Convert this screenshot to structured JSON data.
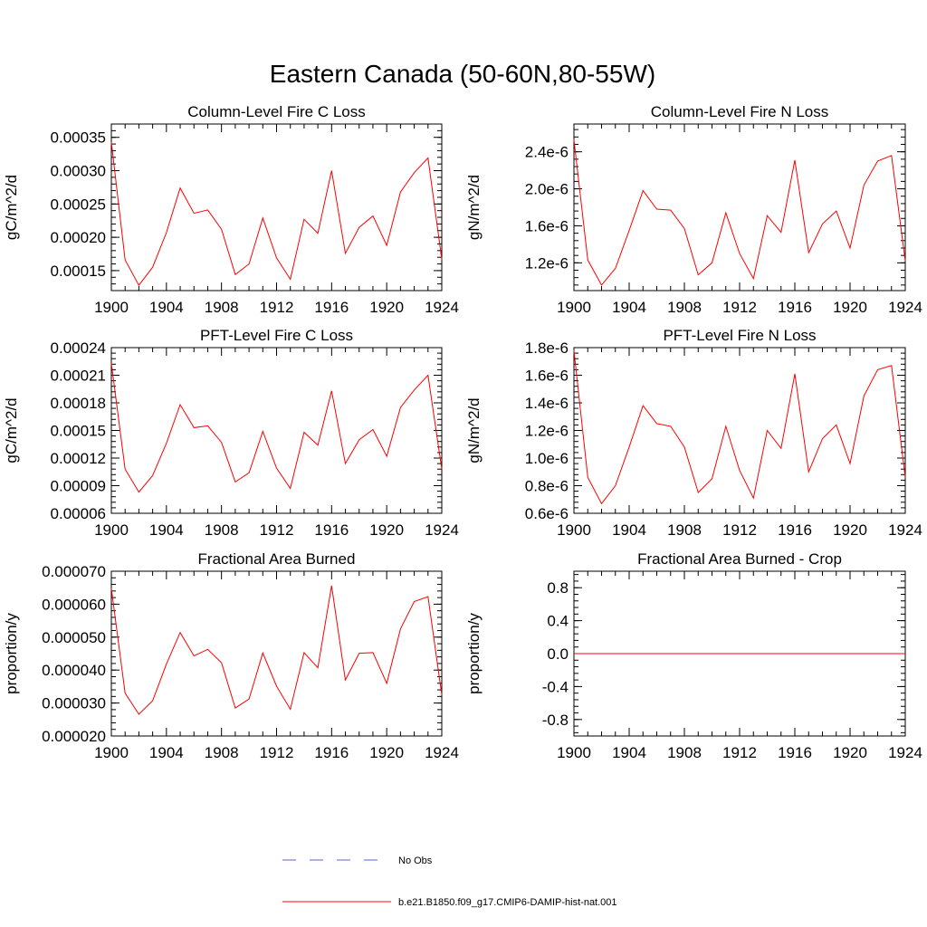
{
  "figure": {
    "title": "Eastern Canada (50-60N,80-55W)"
  },
  "legend": {
    "entries": [
      {
        "label": "No Obs",
        "color": "#5566cc",
        "dash": true
      },
      {
        "label": "b.e21.B1850.f09_g17.CMIP6-DAMIP-hist-nat.001",
        "color": "#ff0000",
        "dash": false
      }
    ]
  },
  "chart_data": [
    {
      "type": "line",
      "title": "Column-Level Fire C Loss",
      "ylabel": "gC/m^2/d",
      "xlabel": "",
      "xlim": [
        1900,
        1924
      ],
      "ylim": [
        0.00012,
        0.00037
      ],
      "xticks": [
        "1900",
        "1904",
        "1908",
        "1912",
        "1916",
        "1920",
        "1924"
      ],
      "yticks": [
        0.00015,
        0.0002,
        0.00025,
        0.0003,
        0.00035
      ],
      "ytick_labels": [
        "0.00015",
        "0.00020",
        "0.00025",
        "0.00030",
        "0.00035"
      ],
      "x": [
        1900,
        1901,
        1902,
        1903,
        1904,
        1905,
        1906,
        1907,
        1908,
        1909,
        1910,
        1911,
        1912,
        1913,
        1914,
        1915,
        1916,
        1917,
        1918,
        1919,
        1920,
        1921,
        1922,
        1923,
        1924
      ],
      "series": [
        {
          "name": "b.e21.B1850.f09_g17.CMIP6-DAMIP-hist-nat.001",
          "color": "#ff0000",
          "values": [
            0.000343,
            0.000166,
            0.000128,
            0.000155,
            0.000207,
            0.000274,
            0.000236,
            0.000241,
            0.000212,
            0.000144,
            0.00016,
            0.000229,
            0.000169,
            0.000137,
            0.000227,
            0.000206,
            0.0003,
            0.000176,
            0.000215,
            0.000232,
            0.000188,
            0.000268,
            0.000297,
            0.000319,
            0.000167
          ]
        }
      ]
    },
    {
      "type": "line",
      "title": "Column-Level Fire N Loss",
      "ylabel": "gN/m^2/d",
      "xlabel": "",
      "xlim": [
        1900,
        1924
      ],
      "ylim": [
        9e-07,
        2.7e-06
      ],
      "xticks": [
        "1900",
        "1904",
        "1908",
        "1912",
        "1916",
        "1920",
        "1924"
      ],
      "yticks": [
        1.2e-06,
        1.6e-06,
        2e-06,
        2.4e-06
      ],
      "ytick_labels": [
        "1.2e-6",
        "1.6e-6",
        "2.0e-6",
        "2.4e-6"
      ],
      "x": [
        1900,
        1901,
        1902,
        1903,
        1904,
        1905,
        1906,
        1907,
        1908,
        1909,
        1910,
        1911,
        1912,
        1913,
        1914,
        1915,
        1916,
        1917,
        1918,
        1919,
        1920,
        1921,
        1922,
        1923,
        1924
      ],
      "series": [
        {
          "name": "b.e21.B1850.f09_g17.CMIP6-DAMIP-hist-nat.001",
          "color": "#ff0000",
          "values": [
            2.53e-06,
            1.23e-06,
            9.6e-07,
            1.14e-06,
            1.55e-06,
            1.98e-06,
            1.78e-06,
            1.77e-06,
            1.57e-06,
            1.07e-06,
            1.2e-06,
            1.74e-06,
            1.3e-06,
            1.03e-06,
            1.71e-06,
            1.53e-06,
            2.31e-06,
            1.31e-06,
            1.62e-06,
            1.76e-06,
            1.36e-06,
            2.04e-06,
            2.3e-06,
            2.36e-06,
            1.22e-06
          ]
        }
      ]
    },
    {
      "type": "line",
      "title": "PFT-Level Fire C Loss",
      "ylabel": "gC/m^2/d",
      "xlabel": "",
      "xlim": [
        1900,
        1924
      ],
      "ylim": [
        6e-05,
        0.00024
      ],
      "xticks": [
        "1900",
        "1904",
        "1908",
        "1912",
        "1916",
        "1920",
        "1924"
      ],
      "yticks": [
        6e-05,
        9e-05,
        0.00012,
        0.00015,
        0.00018,
        0.00021,
        0.00024
      ],
      "ytick_labels": [
        "0.00006",
        "0.00009",
        "0.00012",
        "0.00015",
        "0.00018",
        "0.00021",
        "0.00024"
      ],
      "x": [
        1900,
        1901,
        1902,
        1903,
        1904,
        1905,
        1906,
        1907,
        1908,
        1909,
        1910,
        1911,
        1912,
        1913,
        1914,
        1915,
        1916,
        1917,
        1918,
        1919,
        1920,
        1921,
        1922,
        1923,
        1924
      ],
      "series": [
        {
          "name": "b.e21.B1850.f09_g17.CMIP6-DAMIP-hist-nat.001",
          "color": "#ff0000",
          "values": [
            0.000223,
            0.000108,
            8.3e-05,
            0.000101,
            0.000136,
            0.000178,
            0.000153,
            0.000155,
            0.000137,
            9.4e-05,
            0.000104,
            0.000149,
            0.000109,
            8.7e-05,
            0.000148,
            0.000134,
            0.000193,
            0.000114,
            0.00014,
            0.000151,
            0.000122,
            0.000175,
            0.000194,
            0.00021,
            0.000108
          ]
        }
      ]
    },
    {
      "type": "line",
      "title": "PFT-Level Fire N Loss",
      "ylabel": "gN/m^2/d",
      "xlabel": "",
      "xlim": [
        1900,
        1924
      ],
      "ylim": [
        6e-07,
        1.8e-06
      ],
      "xticks": [
        "1900",
        "1904",
        "1908",
        "1912",
        "1916",
        "1920",
        "1924"
      ],
      "yticks": [
        6e-07,
        8e-07,
        1e-06,
        1.2e-06,
        1.4e-06,
        1.6e-06,
        1.8e-06
      ],
      "ytick_labels": [
        "0.6e-6",
        "0.8e-6",
        "1.0e-6",
        "1.2e-6",
        "1.4e-6",
        "1.6e-6",
        "1.8e-6"
      ],
      "x": [
        1900,
        1901,
        1902,
        1903,
        1904,
        1905,
        1906,
        1907,
        1908,
        1909,
        1910,
        1911,
        1912,
        1913,
        1914,
        1915,
        1916,
        1917,
        1918,
        1919,
        1920,
        1921,
        1922,
        1923,
        1924
      ],
      "series": [
        {
          "name": "b.e21.B1850.f09_g17.CMIP6-DAMIP-hist-nat.001",
          "color": "#ff0000",
          "values": [
            1.78e-06,
            8.6e-07,
            6.7e-07,
            8e-07,
            1.08e-06,
            1.38e-06,
            1.25e-06,
            1.23e-06,
            1.08e-06,
            7.5e-07,
            8.5e-07,
            1.23e-06,
            9.1e-07,
            7.1e-07,
            1.2e-06,
            1.07e-06,
            1.61e-06,
            9e-07,
            1.14e-06,
            1.24e-06,
            9.6e-07,
            1.45e-06,
            1.64e-06,
            1.67e-06,
            8.6e-07
          ]
        }
      ]
    },
    {
      "type": "line",
      "title": "Fractional Area Burned",
      "ylabel": "proportion/y",
      "xlabel": "",
      "xlim": [
        1900,
        1924
      ],
      "ylim": [
        2e-05,
        7e-05
      ],
      "xticks": [
        "1900",
        "1904",
        "1908",
        "1912",
        "1916",
        "1920",
        "1924"
      ],
      "yticks": [
        2e-05,
        3e-05,
        4e-05,
        5e-05,
        6e-05,
        7e-05
      ],
      "ytick_labels": [
        "0.000020",
        "0.000030",
        "0.000040",
        "0.000050",
        "0.000060",
        "0.000070"
      ],
      "x": [
        1900,
        1901,
        1902,
        1903,
        1904,
        1905,
        1906,
        1907,
        1908,
        1909,
        1910,
        1911,
        1912,
        1913,
        1914,
        1915,
        1916,
        1917,
        1918,
        1919,
        1920,
        1921,
        1922,
        1923,
        1924
      ],
      "series": [
        {
          "name": "b.e21.B1850.f09_g17.CMIP6-DAMIP-hist-nat.001",
          "color": "#ff0000",
          "values": [
            6.48e-05,
            3.3e-05,
            2.66e-05,
            3.07e-05,
            4.18e-05,
            5.14e-05,
            4.43e-05,
            4.63e-05,
            4.22e-05,
            2.85e-05,
            3.12e-05,
            4.52e-05,
            3.51e-05,
            2.81e-05,
            4.53e-05,
            4.07e-05,
            6.56e-05,
            3.7e-05,
            4.51e-05,
            4.53e-05,
            3.6e-05,
            5.25e-05,
            6.08e-05,
            6.23e-05,
            3.25e-05
          ]
        }
      ]
    },
    {
      "type": "line",
      "title": "Fractional Area Burned - Crop",
      "ylabel": "proportion/y",
      "xlabel": "",
      "xlim": [
        1900,
        1924
      ],
      "ylim": [
        -1.0,
        1.0
      ],
      "xticks": [
        "1900",
        "1904",
        "1908",
        "1912",
        "1916",
        "1920",
        "1924"
      ],
      "yticks": [
        -0.8,
        -0.4,
        0.0,
        0.4,
        0.8
      ],
      "ytick_labels": [
        "-0.8",
        "-0.4",
        "0.0",
        "0.4",
        "0.8"
      ],
      "x": [
        1900,
        1901,
        1902,
        1903,
        1904,
        1905,
        1906,
        1907,
        1908,
        1909,
        1910,
        1911,
        1912,
        1913,
        1914,
        1915,
        1916,
        1917,
        1918,
        1919,
        1920,
        1921,
        1922,
        1923,
        1924
      ],
      "series": [
        {
          "name": "b.e21.B1850.f09_g17.CMIP6-DAMIP-hist-nat.001",
          "color": "#ff0000",
          "values": [
            0,
            0,
            0,
            0,
            0,
            0,
            0,
            0,
            0,
            0,
            0,
            0,
            0,
            0,
            0,
            0,
            0,
            0,
            0,
            0,
            0,
            0,
            0,
            0,
            0
          ]
        }
      ]
    }
  ]
}
